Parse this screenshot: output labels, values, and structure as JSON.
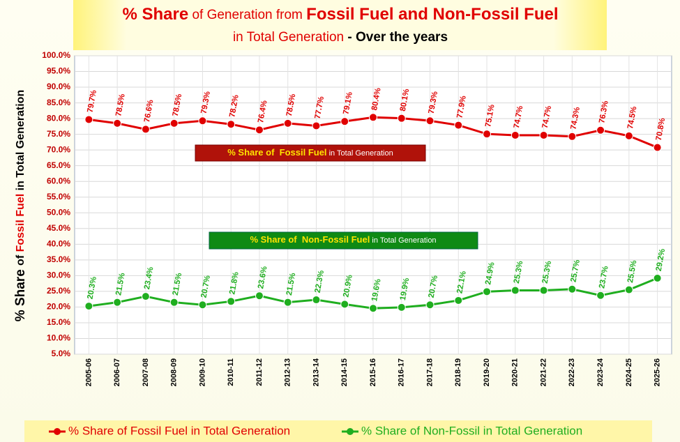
{
  "chart_data": {
    "type": "line",
    "title_parts": [
      "% Share",
      " of Generation from ",
      "Fossil Fuel and Non-Fossil Fuel"
    ],
    "subtitle_parts": [
      "in Total Generation",
      " - Over the years"
    ],
    "y_label_parts": [
      "% Share ",
      "of ",
      "Fossil Fuel",
      " in Total Generation"
    ],
    "annotations": [
      {
        "parts": [
          "% Share of  Fossil Fuel",
          " in Total Generation"
        ]
      },
      {
        "parts": [
          "% Share of  Non-Fossil Fuel",
          " in Total Generation"
        ]
      }
    ],
    "categories": [
      "2005-06",
      "2006-07",
      "2007-08",
      "2008-09",
      "2009-10",
      "2010-11",
      "2011-12",
      "2012-13",
      "2013-14",
      "2014-15",
      "2015-16",
      "2016-17",
      "2017-18",
      "2018-19",
      "2019-20",
      "2020-21",
      "2021-22",
      "2022-23",
      "2023-24",
      "2024-25",
      "2025-26"
    ],
    "series": [
      {
        "name": "% Share of Fossil Fuel in Total Generation",
        "color": "#e00000",
        "values": [
          79.7,
          78.5,
          76.6,
          78.5,
          79.3,
          78.2,
          76.4,
          78.5,
          77.7,
          79.1,
          80.4,
          80.1,
          79.3,
          77.9,
          75.1,
          74.7,
          74.7,
          74.3,
          76.3,
          74.5,
          70.8
        ],
        "value_labels": [
          "79.7%",
          "78.5%",
          "76.6%",
          "78.5%",
          "79.3%",
          "78.2%",
          "76.4%",
          "78.5%",
          "77.7%",
          "79.1%",
          "80.4%",
          "80.1%",
          "79.3%",
          "77.9%",
          "75.1%",
          "74.7%",
          "74.7%",
          "74.3%",
          "76.3%",
          "74.5%",
          "70.8%"
        ]
      },
      {
        "name": "% Share of Non-Fossil in Total Generation",
        "color": "#1fae1f",
        "values": [
          20.3,
          21.5,
          23.4,
          21.5,
          20.7,
          21.8,
          23.6,
          21.5,
          22.3,
          20.9,
          19.6,
          19.9,
          20.7,
          22.1,
          24.9,
          25.3,
          25.3,
          25.7,
          23.7,
          25.5,
          29.2
        ],
        "value_labels": [
          "20.3%",
          "21.5%",
          "23.4%",
          "21.5%",
          "20.7%",
          "21.8%",
          "23.6%",
          "21.5%",
          "22.3%",
          "20.9%",
          "19.6%",
          "19.9%",
          "20.7%",
          "22.1%",
          "24.9%",
          "25.3%",
          "25.3%",
          "25.7%",
          "23.7%",
          "25.5%",
          "29.2%"
        ]
      }
    ],
    "ylim": [
      5,
      100
    ],
    "yticks": [
      {
        "value": 5,
        "label": "5.0%"
      },
      {
        "value": 10,
        "label": "10.0%"
      },
      {
        "value": 15,
        "label": "15.0%"
      },
      {
        "value": 20,
        "label": "20.0%"
      },
      {
        "value": 25,
        "label": "25.0%"
      },
      {
        "value": 30,
        "label": "30.0%"
      },
      {
        "value": 35,
        "label": "35.0%"
      },
      {
        "value": 40,
        "label": "40.0%"
      },
      {
        "value": 45,
        "label": "45.0%"
      },
      {
        "value": 50,
        "label": "50.0%"
      },
      {
        "value": 55,
        "label": "55.0%"
      },
      {
        "value": 60,
        "label": "60.0%"
      },
      {
        "value": 65,
        "label": "65.0%"
      },
      {
        "value": 70,
        "label": "70.0%"
      },
      {
        "value": 75,
        "label": "75.0%"
      },
      {
        "value": 80,
        "label": "80.0%"
      },
      {
        "value": 85,
        "label": "85.0%"
      },
      {
        "value": 90,
        "label": "90.0%"
      },
      {
        "value": 95,
        "label": "95.0%"
      },
      {
        "value": 100,
        "label": "100.0%"
      }
    ],
    "grid": true
  }
}
